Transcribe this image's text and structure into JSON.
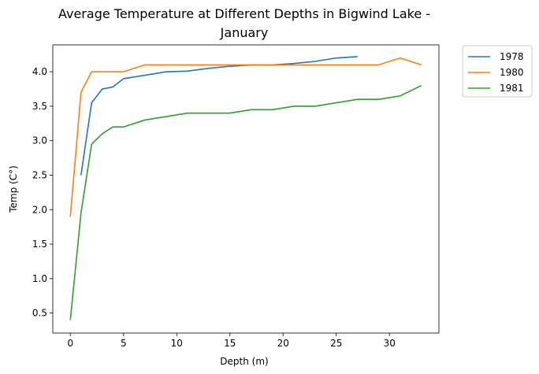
{
  "chart_data": {
    "type": "line",
    "title_lines": [
      "Average Temperature at Different Depths in Bigwind Lake -",
      "January"
    ],
    "xlabel": "Depth (m)",
    "ylabel": "Temp (C°)",
    "xlim": [
      -1.65,
      34.65
    ],
    "ylim": [
      0.21,
      4.39
    ],
    "xticks": [
      0,
      5,
      10,
      15,
      20,
      25,
      30
    ],
    "yticks": [
      0.5,
      1.0,
      1.5,
      2.0,
      2.5,
      3.0,
      3.5,
      4.0
    ],
    "xtick_labels": [
      "0",
      "5",
      "10",
      "15",
      "20",
      "25",
      "30"
    ],
    "ytick_labels": [
      "0.5",
      "1.0",
      "1.5",
      "2.0",
      "2.5",
      "3.0",
      "3.5",
      "4.0"
    ],
    "grid": false,
    "legend_position": "outside-right-top",
    "series": [
      {
        "name": "1978",
        "color": "#1f77b4",
        "x": [
          1,
          2,
          3,
          4,
          5,
          7,
          9,
          11,
          13,
          15,
          17,
          19,
          21,
          23,
          25,
          27
        ],
        "y": [
          2.5,
          3.55,
          3.75,
          3.78,
          3.9,
          3.95,
          4.0,
          4.01,
          4.05,
          4.08,
          4.1,
          4.1,
          4.12,
          4.15,
          4.2,
          4.22
        ]
      },
      {
        "name": "1980",
        "color": "#ff7f0e",
        "x": [
          0,
          1,
          2,
          3,
          4,
          5,
          7,
          9,
          11,
          13,
          15,
          17,
          19,
          21,
          23,
          25,
          27,
          29,
          31,
          33
        ],
        "y": [
          1.9,
          3.7,
          4.0,
          4.0,
          4.0,
          4.0,
          4.1,
          4.1,
          4.1,
          4.1,
          4.1,
          4.1,
          4.1,
          4.1,
          4.1,
          4.1,
          4.1,
          4.1,
          4.2,
          4.1
        ]
      },
      {
        "name": "1981",
        "color": "#2ca02c",
        "x": [
          0,
          1,
          2,
          3,
          4,
          5,
          7,
          9,
          11,
          13,
          15,
          17,
          19,
          21,
          23,
          25,
          27,
          29,
          31,
          33
        ],
        "y": [
          0.4,
          1.95,
          2.95,
          3.1,
          3.2,
          3.2,
          3.3,
          3.35,
          3.4,
          3.4,
          3.4,
          3.45,
          3.45,
          3.5,
          3.5,
          3.55,
          3.6,
          3.6,
          3.65,
          3.8
        ]
      }
    ]
  }
}
